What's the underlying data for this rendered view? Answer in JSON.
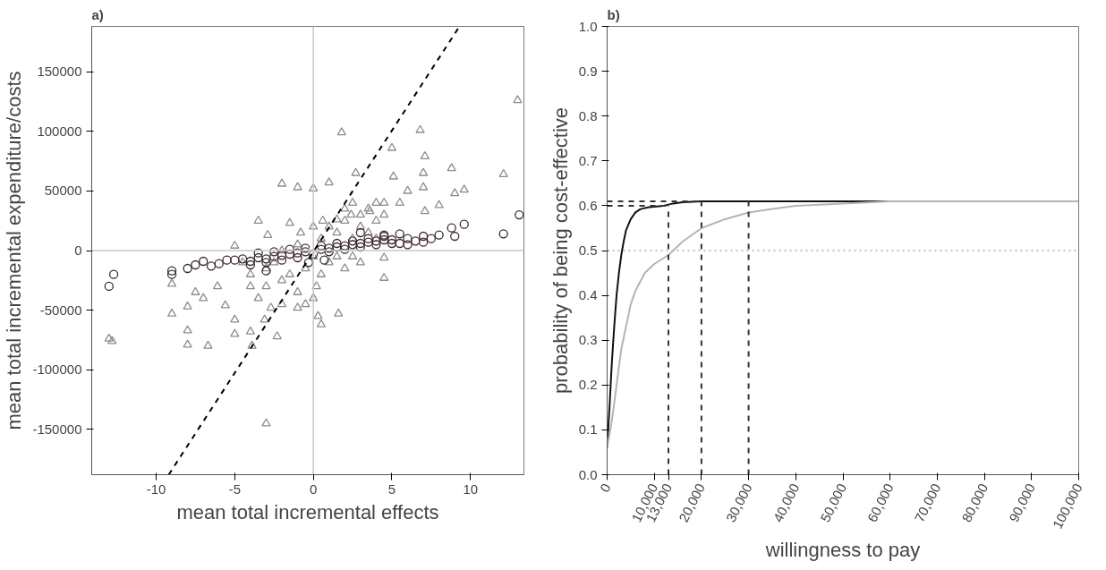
{
  "chart_data": [
    {
      "type": "scatter",
      "title": "a)",
      "xlabel": "mean total incremental effects",
      "ylabel": "mean total incremental expenditure/costs",
      "xlim": [
        -14.1,
        13.4
      ],
      "xticks": [
        -10,
        -5,
        0,
        5,
        10
      ],
      "ylim": [
        -188000,
        188000
      ],
      "yticks": [
        -150000,
        -100000,
        -50000,
        0,
        50000,
        100000,
        150000
      ],
      "grid": false,
      "ref_lines": [
        {
          "axis": "x",
          "value": 0,
          "color": "#c8c8c8"
        },
        {
          "axis": "y",
          "value": 0,
          "color": "#c8c8c8"
        }
      ],
      "series": [
        {
          "marker": "triangle",
          "color": "#8c8c8c",
          "x": [
            13.0,
            1.8,
            6.8,
            5.0,
            7.1,
            2.7,
            5.1,
            7.0,
            8.8,
            12.1,
            -2.0,
            -1.0,
            0,
            1.0,
            6.0,
            7.0,
            9.0,
            9.6,
            8.0,
            -3.5,
            -1.5,
            3.6,
            2.4,
            1.5,
            0.6,
            4.5,
            5.5,
            7.1,
            -5,
            -2.9,
            -0.8,
            4.5,
            4.5,
            -9.0,
            -9.0,
            -8.0,
            -8.0,
            -8.0,
            -6.7,
            -7.5,
            -7.0,
            -6.1,
            -5.6,
            -5,
            -5,
            -4.0,
            -3.9,
            -3.1,
            -2.3,
            -3.0,
            0.3,
            0.5,
            1.6,
            -1.0,
            -2.7,
            -13.0,
            -12.8,
            -4,
            -3,
            -2,
            -1,
            0,
            -3.5,
            -2.5,
            -1.5,
            -0.5,
            0.5,
            1,
            2,
            3,
            1.5,
            -4.5,
            0,
            1,
            2,
            3,
            4,
            4.5,
            3.5,
            2.5,
            0.5,
            1.5,
            2.5,
            3.5,
            -1,
            -2,
            0,
            4,
            -4,
            -2,
            -0.5,
            0.2,
            2,
            3,
            4,
            2.5,
            -3
          ],
          "values": [
            126000,
            99000,
            101000,
            86000,
            79000,
            65000,
            62000,
            65000,
            69000,
            64000,
            56000,
            53000,
            52000,
            57000,
            50000,
            53000,
            48000,
            51000,
            38000,
            25000,
            23000,
            33000,
            30000,
            26000,
            25000,
            40000,
            40000,
            33000,
            4000,
            13000,
            15000,
            -6000,
            -23000,
            -28000,
            -53000,
            -47000,
            -67000,
            -79000,
            -80000,
            -35000,
            -40000,
            -30000,
            -46000,
            -58000,
            -70000,
            -68000,
            -80000,
            -58000,
            -72000,
            -145000,
            -55000,
            -62000,
            -53000,
            -48000,
            -48000,
            -74000,
            -76000,
            -20000,
            -30000,
            -25000,
            -35000,
            -40000,
            -40000,
            -10000,
            -20000,
            -15000,
            -20000,
            -10000,
            -15000,
            -10000,
            -5000,
            -10000,
            20000,
            20000,
            25000,
            20000,
            25000,
            30000,
            35000,
            40000,
            10000,
            15000,
            10000,
            15000,
            5000,
            0,
            -5000,
            10000,
            -30000,
            -45000,
            -45000,
            -30000,
            35000,
            30000,
            40000,
            -5000,
            -15000
          ]
        },
        {
          "marker": "circle",
          "color": "#3b2a2a",
          "x": [
            -13.0,
            -12.7,
            -9.0,
            -9.0,
            -8.0,
            -7.5,
            -7.0,
            -6.5,
            -6.0,
            -5.5,
            -5.0,
            -4.5,
            -4,
            -3.5,
            -3,
            -3,
            -2.5,
            -2,
            -1.5,
            -1,
            -0.5,
            0.5,
            1,
            1.5,
            2,
            2.5,
            3,
            3.5,
            4,
            4.5,
            -4,
            -3,
            -2,
            -1,
            0,
            1,
            2,
            3,
            4,
            -3.5,
            -2.5,
            -1.5,
            -0.5,
            0.5,
            1.5,
            2.5,
            3.5,
            4.5,
            3,
            4.5,
            5,
            5,
            5.5,
            6,
            6,
            6.5,
            7,
            7,
            7.5,
            8,
            8.8,
            9,
            9.6,
            12.1,
            13.1,
            -0.3,
            0.7,
            5.5
          ],
          "values": [
            -30000,
            -20000,
            -17000,
            -20000,
            -15000,
            -12000,
            -9000,
            -13000,
            -11000,
            -8000,
            -8000,
            -7000,
            -9000,
            -6000,
            -7000,
            -17000,
            -5000,
            -4000,
            -3000,
            -2000,
            -1000,
            1000,
            2000,
            3000,
            4000,
            5000,
            6000,
            7000,
            8000,
            9000,
            -12000,
            -10000,
            -8000,
            -6000,
            -3000,
            -1000,
            1000,
            3000,
            5000,
            -2000,
            -1000,
            1000,
            2000,
            4000,
            6000,
            8000,
            10000,
            12000,
            15000,
            13000,
            9000,
            6000,
            6000,
            10000,
            5000,
            8000,
            12000,
            7000,
            10000,
            13000,
            19000,
            12000,
            22000,
            14000,
            30000,
            -10000,
            -8000,
            14000
          ]
        },
        {
          "marker": "circle",
          "color": "#ffffff",
          "x": [
            0
          ],
          "values": [
            0
          ]
        },
        {
          "type": "line",
          "line_style": "dashed",
          "color": "#000000",
          "x": [
            -9.2,
            9.3
          ],
          "values": [
            -188000,
            188000
          ]
        }
      ]
    },
    {
      "type": "line",
      "title": "b)",
      "xlabel": "willingness to pay",
      "ylabel": "probability of being cost-effective",
      "xlim": [
        0,
        100000
      ],
      "xticks": [
        0,
        {
          "value": 10000,
          "label": "10,000"
        },
        {
          "value": 13000,
          "label": "13,000"
        },
        {
          "value": 20000,
          "label": "20,000"
        },
        {
          "value": 30000,
          "label": "30,000"
        },
        {
          "value": 40000,
          "label": "40,000"
        },
        {
          "value": 50000,
          "label": "50,000"
        },
        {
          "value": 60000,
          "label": "60,000"
        },
        {
          "value": 70000,
          "label": "70,000"
        },
        {
          "value": 80000,
          "label": "80,000"
        },
        {
          "value": 90000,
          "label": "90,000"
        },
        {
          "value": 100000,
          "label": "100,000"
        }
      ],
      "ylim": [
        0,
        1
      ],
      "yticks": [
        {
          "value": 0,
          "label": "0.0"
        },
        0.1,
        0.2,
        0.3,
        0.4,
        0.5,
        0.6,
        0.7,
        0.8,
        0.9,
        {
          "value": 1,
          "label": "1.0"
        }
      ],
      "grid": false,
      "ref_lines": [
        {
          "axis": "y",
          "value": 0.5,
          "color": "#aaaaaa",
          "line_style": "dotted"
        }
      ],
      "series": [
        {
          "line_style": "solid",
          "color": "#111111",
          "x": [
            0,
            500,
            1000,
            1500,
            2000,
            2500,
            3000,
            3500,
            4000,
            5000,
            6000,
            7000,
            8000,
            9000,
            10000,
            12000,
            14000,
            16000,
            20000,
            30000,
            50000,
            100000
          ],
          "values": [
            0.06,
            0.15,
            0.25,
            0.33,
            0.4,
            0.45,
            0.49,
            0.52,
            0.545,
            0.57,
            0.585,
            0.592,
            0.595,
            0.597,
            0.598,
            0.6,
            0.605,
            0.608,
            0.61,
            0.61,
            0.61,
            0.61
          ]
        },
        {
          "line_style": "solid",
          "color": "#b4b4b4",
          "x": [
            0,
            1000,
            2000,
            3000,
            4000,
            5000,
            6000,
            8000,
            10000,
            13000,
            16000,
            20000,
            25000,
            30000,
            35000,
            40000,
            50000,
            60000,
            100000
          ],
          "values": [
            0.06,
            0.12,
            0.2,
            0.28,
            0.33,
            0.38,
            0.41,
            0.45,
            0.47,
            0.49,
            0.52,
            0.55,
            0.57,
            0.585,
            0.593,
            0.6,
            0.605,
            0.61,
            0.61
          ]
        },
        {
          "line_style": "dashed",
          "color": "#333333",
          "x": [
            13000,
            13000
          ],
          "values": [
            0,
            0.6
          ]
        },
        {
          "line_style": "dashed",
          "color": "#333333",
          "x": [
            20000,
            20000
          ],
          "values": [
            0,
            0.61
          ]
        },
        {
          "line_style": "dashed",
          "color": "#333333",
          "x": [
            30000,
            30000
          ],
          "values": [
            0,
            0.61
          ]
        },
        {
          "line_style": "dashed",
          "color": "#333333",
          "x": [
            0,
            13000
          ],
          "values": [
            0.6,
            0.6
          ]
        },
        {
          "line_style": "dashed",
          "color": "#333333",
          "x": [
            0,
            20000
          ],
          "values": [
            0.61,
            0.61
          ]
        }
      ]
    }
  ]
}
